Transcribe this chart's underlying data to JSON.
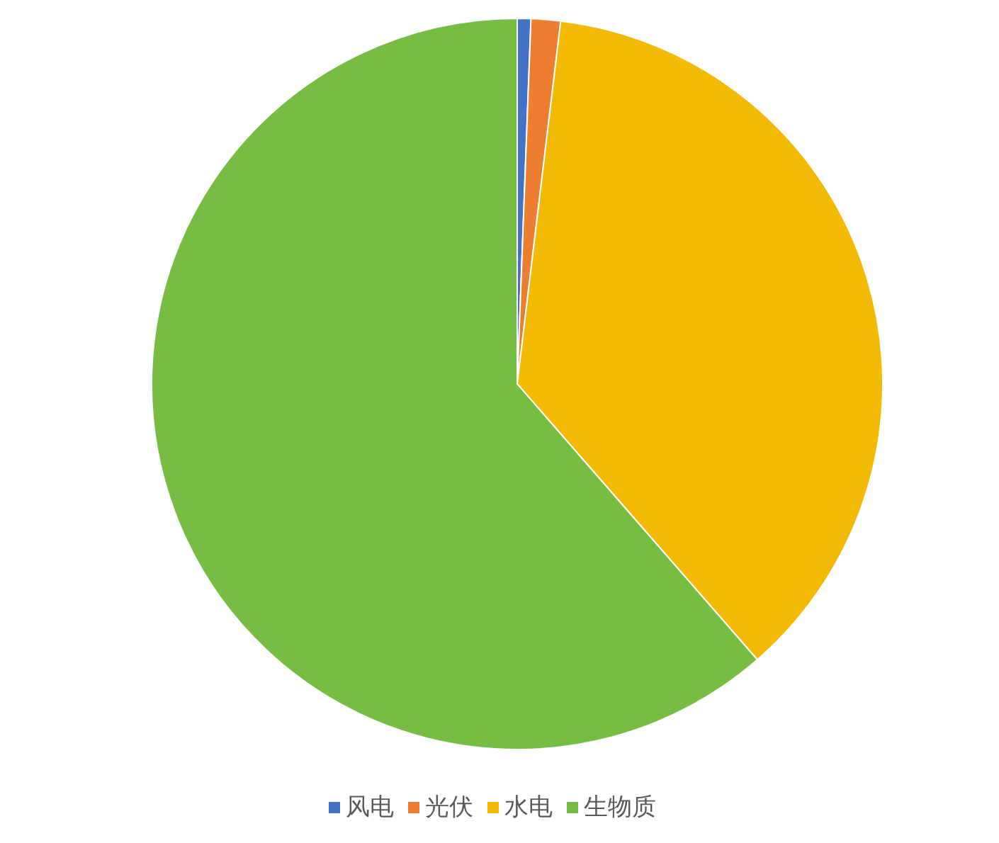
{
  "chart_data": {
    "type": "pie",
    "categories": [
      "风电",
      "光伏",
      "水电",
      "生物质"
    ],
    "values": [
      0.6,
      1.3,
      36.7,
      61.4
    ],
    "colors": [
      "#4472c4",
      "#ed7d31",
      "#f2ba02",
      "#78bd43"
    ],
    "legend": "bottom"
  }
}
